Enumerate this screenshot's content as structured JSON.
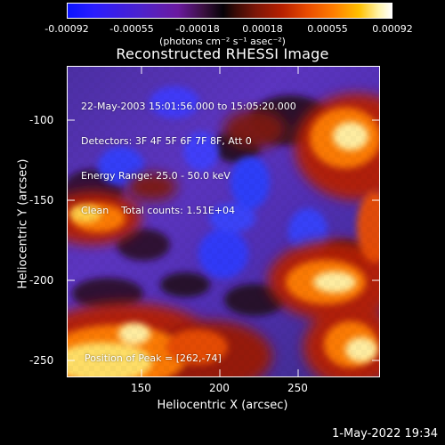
{
  "colorbar": {
    "ticks": [
      "-0.00092",
      "-0.00055",
      "-0.00018",
      "0.00018",
      "0.00055",
      "0.00092"
    ],
    "units": "(photons cm⁻² s⁻¹ asec⁻²)"
  },
  "title": "Reconstructed RHESSI Image",
  "info": {
    "time_range": "22-May-2003 15:01:56.000 to 15:05:20.000",
    "detectors": "Detectors: 3F 4F 5F 6F 7F 8F, Att 0",
    "energy_range": "Energy Range: 25.0 - 50.0 keV",
    "clean_counts": "Clean    Total counts: 1.51E+04",
    "peak": "Position of Peak = [262,-74]"
  },
  "axes": {
    "x_label": "Heliocentric X (arcsec)",
    "y_label": "Heliocentric Y (arcsec)",
    "x_ticks": [
      "150",
      "200",
      "250"
    ],
    "y_ticks": [
      "-100",
      "-150",
      "-200",
      "-250"
    ]
  },
  "footer": {
    "date": "1-May-2022 19:34"
  },
  "colors": {
    "background": "#000000",
    "text": "#ffffff"
  }
}
